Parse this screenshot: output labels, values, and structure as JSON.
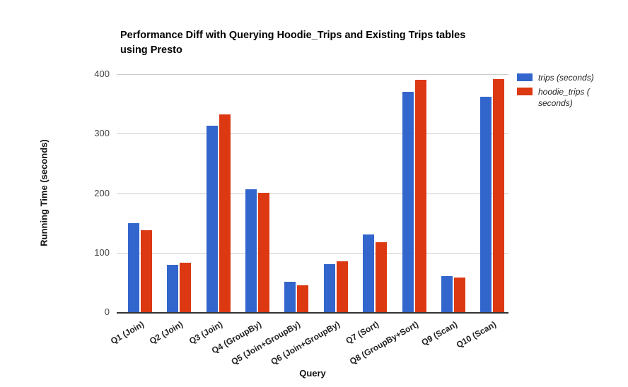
{
  "chart_data": {
    "type": "bar",
    "title": "Performance Diff with Querying Hoodie_Trips and Existing Trips tables using Presto",
    "title_lines": [
      "Performance Diff with Querying Hoodie_Trips and Existing Trips tables",
      "using Presto"
    ],
    "xlabel": "Query",
    "ylabel": "Running Time (seconds)",
    "ylim": [
      0,
      400
    ],
    "yticks": [
      0,
      100,
      200,
      300,
      400
    ],
    "grid": true,
    "legend_position": "right",
    "categories": [
      "Q1 (Join)",
      "Q2 (Join)",
      "Q3 (Join)",
      "Q4 (GroupBy)",
      "Q5 (Join+GroupBy)",
      "Q6 (Join+GroupBy)",
      "Q7 (Sort)",
      "Q8 (GroupBy+Sort)",
      "Q9 (Scan)",
      "Q10 (Scan)"
    ],
    "series": [
      {
        "name": "trips (seconds)",
        "color": "#3366CC",
        "values": [
          150,
          80,
          313,
          207,
          51,
          81,
          131,
          370,
          60,
          362
        ]
      },
      {
        "name": "hoodie_trips ( seconds)",
        "color": "#DC3912",
        "values": [
          138,
          83,
          332,
          201,
          45,
          85,
          117,
          390,
          58,
          392
        ]
      }
    ],
    "colors": {
      "gridline": "#cccccc",
      "baseline": "#333333",
      "background": "#ffffff"
    }
  }
}
